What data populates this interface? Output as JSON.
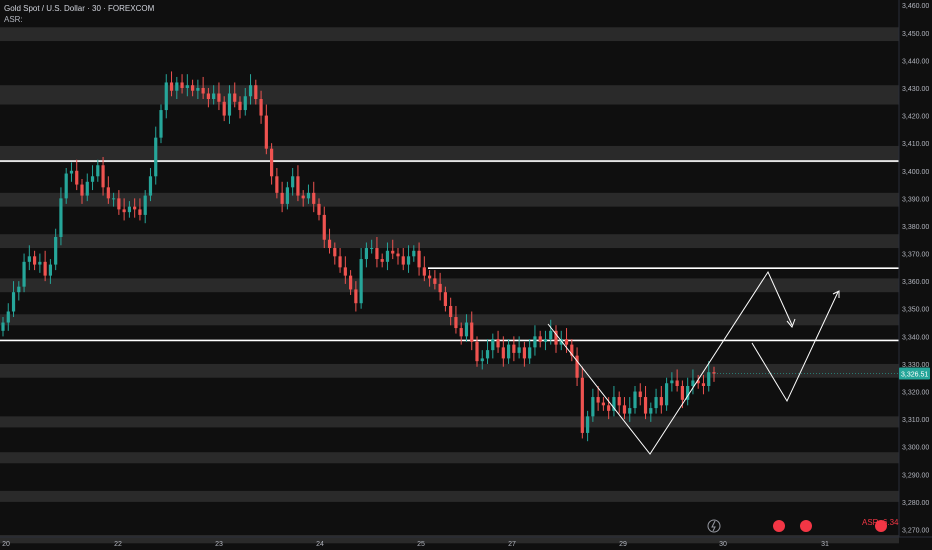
{
  "header": {
    "title": "Gold Spot / U.S. Dollar · 30 · FOREXCOM",
    "indicator_label": "ASR:"
  },
  "footer": {
    "asr_label": "ASR: 6.34"
  },
  "chart_data": {
    "type": "candlestick",
    "symbol": "Gold Spot / U.S. Dollar",
    "timeframe": "30",
    "source": "FOREXCOM",
    "y_ticks": [
      3270,
      3280,
      3290,
      3300,
      3310,
      3320,
      3330,
      3340,
      3350,
      3360,
      3370,
      3380,
      3390,
      3400,
      3410,
      3420,
      3430,
      3440,
      3450,
      3460
    ],
    "ylim": [
      3265,
      3461
    ],
    "x_ticks": [
      "20",
      "22",
      "23",
      "24",
      "25",
      "27",
      "29",
      "30",
      "31"
    ],
    "last_price": "3,326.51",
    "colors": {
      "background": "#0f0f0f",
      "up": "#26a69a",
      "down": "#ef5350",
      "bands": "#2a2a2a",
      "level_lines": "#ffffff",
      "price_tag": "#26a69a",
      "event_marker": "#f23645"
    },
    "shaded_zones": [
      [
        3447,
        3452
      ],
      [
        3424,
        3431
      ],
      [
        3403,
        3409
      ],
      [
        3387,
        3392
      ],
      [
        3372,
        3377
      ],
      [
        3356,
        3361
      ],
      [
        3344,
        3348
      ],
      [
        3325,
        3330
      ],
      [
        3307,
        3311
      ],
      [
        3294,
        3298
      ],
      [
        3280,
        3284
      ],
      [
        3265,
        3268
      ]
    ],
    "level_lines": [
      3403.5,
      3364.7,
      3338.5
    ],
    "candles_close": [
      3345,
      3349,
      3356,
      3358,
      3367,
      3369,
      3366,
      3367,
      3362,
      3366,
      3376,
      3390,
      3399,
      3400,
      3395,
      3391,
      3396,
      3398,
      3402,
      3394,
      3390,
      3390,
      3386,
      3385,
      3387,
      3386,
      3384,
      3391,
      3398,
      3412,
      3422,
      3432,
      3429,
      3432,
      3430,
      3431,
      3429,
      3430,
      3428,
      3426,
      3428,
      3425,
      3420,
      3428,
      3425,
      3422,
      3427,
      3431,
      3426,
      3420,
      3408,
      3398,
      3392,
      3388,
      3394,
      3398,
      3391,
      3390,
      3392,
      3388,
      3384,
      3375,
      3372,
      3369,
      3365,
      3362,
      3357,
      3352,
      3368,
      3372,
      3372,
      3368,
      3367,
      3371,
      3370,
      3369,
      3366,
      3369,
      3371,
      3365,
      3362,
      3361,
      3359,
      3356,
      3351,
      3347,
      3343,
      3340,
      3345,
      3338,
      3331,
      3332,
      3335,
      3339,
      3336,
      3332,
      3337,
      3334,
      3336,
      3332,
      3336,
      3340,
      3338,
      3339,
      3342,
      3337,
      3339,
      3337,
      3333,
      3325,
      3305,
      3311,
      3318,
      3316,
      3315,
      3313,
      3318,
      3315,
      3312,
      3314,
      3320,
      3318,
      3312,
      3314,
      3318,
      3315,
      3323,
      3324,
      3322,
      3317,
      3322,
      3324,
      3323,
      3322,
      3327,
      3326.51
    ]
  }
}
